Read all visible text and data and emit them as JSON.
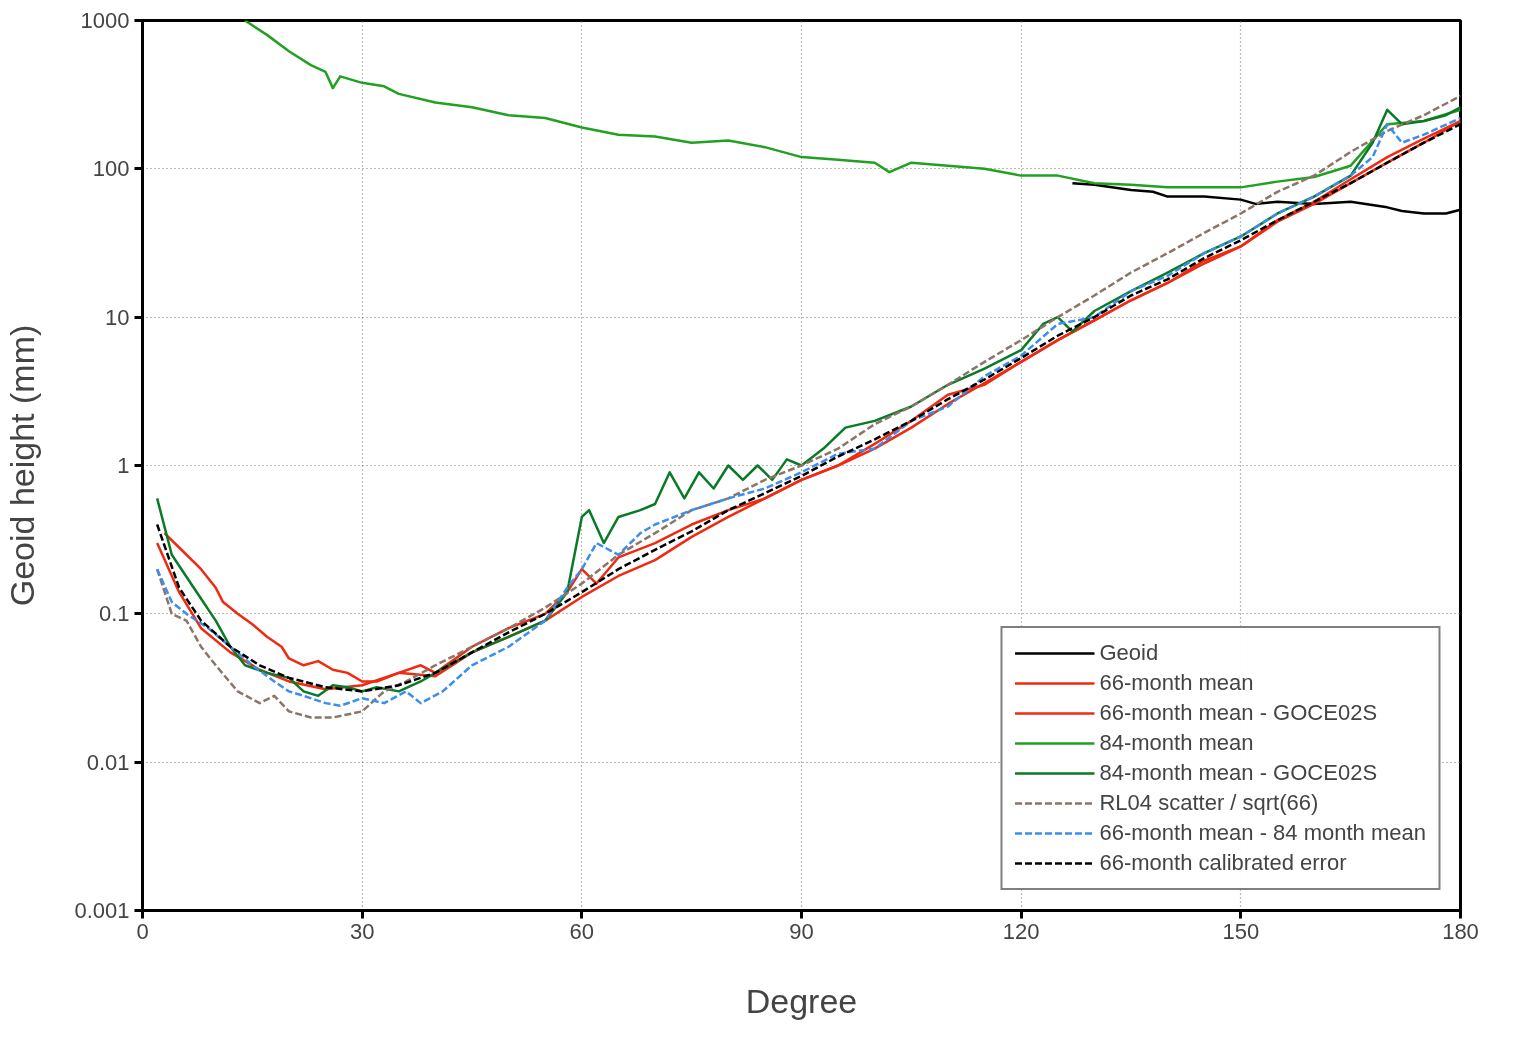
{
  "chart_data": {
    "type": "line",
    "xlabel": "Degree",
    "ylabel": "Geoid height (mm)",
    "xlim": [
      0,
      180
    ],
    "ylim": [
      0.001,
      1000
    ],
    "xticks": [
      0,
      30,
      60,
      90,
      120,
      150,
      180
    ],
    "yticks": [
      0.001,
      0.01,
      0.1,
      1,
      10,
      100,
      1000
    ],
    "log": "y",
    "grid": true,
    "legend": "bottom right",
    "series": [
      {
        "name": "Geoid",
        "color": "#000000",
        "line_style": "solid",
        "x": [
          127,
          130,
          135,
          138,
          140,
          145,
          150,
          152,
          155,
          160,
          165,
          170,
          172,
          175,
          178,
          180
        ],
        "values": [
          80,
          78,
          72,
          70,
          65,
          65,
          62,
          58,
          60,
          58,
          60,
          55,
          52,
          50,
          50,
          53
        ]
      },
      {
        "name": "66-month mean",
        "color": "#f02a10",
        "line_style": "solid",
        "x": [
          3,
          5,
          8,
          10,
          11,
          13,
          15,
          17,
          19,
          20,
          22,
          24,
          26,
          28,
          30,
          32,
          35,
          38,
          40,
          45,
          50,
          55,
          58,
          60,
          62,
          65,
          70,
          75,
          80,
          85,
          90,
          95,
          100,
          105,
          110,
          115,
          120,
          125,
          130,
          135,
          140,
          145,
          150,
          155,
          160,
          165,
          170,
          175,
          180
        ],
        "values": [
          0.35,
          0.28,
          0.2,
          0.15,
          0.12,
          0.1,
          0.085,
          0.07,
          0.06,
          0.05,
          0.045,
          0.048,
          0.042,
          0.04,
          0.035,
          0.035,
          0.04,
          0.045,
          0.04,
          0.06,
          0.08,
          0.1,
          0.14,
          0.2,
          0.16,
          0.24,
          0.3,
          0.4,
          0.5,
          0.6,
          0.8,
          1.0,
          1.4,
          2.0,
          3.0,
          3.5,
          5,
          7,
          9.5,
          13,
          17,
          23,
          30,
          45,
          60,
          85,
          120,
          160,
          210
        ]
      },
      {
        "name": "66-month mean - GOCE02S",
        "color": "#f02a10",
        "line_style": "solid",
        "x": [
          2,
          5,
          8,
          12,
          16,
          20,
          25,
          30,
          35,
          40,
          45,
          50,
          55,
          60,
          65,
          70,
          75,
          80,
          85,
          90,
          95,
          100,
          105,
          110,
          115,
          120,
          125,
          130,
          135,
          140,
          145,
          150,
          155,
          160,
          165,
          170,
          175,
          180
        ],
        "values": [
          0.3,
          0.14,
          0.08,
          0.055,
          0.042,
          0.035,
          0.031,
          0.033,
          0.04,
          0.038,
          0.055,
          0.07,
          0.09,
          0.13,
          0.18,
          0.23,
          0.33,
          0.45,
          0.6,
          0.8,
          1.0,
          1.3,
          1.8,
          2.6,
          3.6,
          5,
          7,
          9.5,
          13,
          17,
          24,
          30,
          44,
          58,
          80,
          110,
          150,
          210
        ]
      },
      {
        "name": "84-month mean",
        "color": "#22a022",
        "line_style": "solid",
        "x": [
          14,
          17,
          20,
          23,
          25,
          26,
          27,
          30,
          33,
          35,
          40,
          45,
          50,
          55,
          60,
          65,
          70,
          75,
          80,
          85,
          90,
          95,
          100,
          102,
          105,
          110,
          115,
          120,
          125,
          130,
          135,
          140,
          145,
          150,
          155,
          160,
          165,
          170,
          175,
          180
        ],
        "values": [
          1000,
          800,
          620,
          500,
          450,
          350,
          420,
          380,
          360,
          320,
          280,
          260,
          230,
          220,
          190,
          170,
          165,
          150,
          155,
          140,
          120,
          115,
          110,
          95,
          110,
          105,
          100,
          90,
          90,
          80,
          78,
          75,
          75,
          75,
          82,
          88,
          105,
          200,
          210,
          250
        ]
      },
      {
        "name": "84-month mean - GOCE02S",
        "color": "#0a7a26",
        "line_style": "solid",
        "x": [
          2,
          4,
          7,
          10,
          12,
          14,
          17,
          20,
          22,
          24,
          26,
          28,
          30,
          32,
          35,
          38,
          40,
          45,
          50,
          55,
          58,
          60,
          61,
          63,
          65,
          68,
          70,
          72,
          74,
          76,
          78,
          80,
          82,
          84,
          86,
          88,
          90,
          93,
          96,
          100,
          105,
          110,
          115,
          120,
          123,
          125,
          127,
          130,
          135,
          140,
          145,
          150,
          155,
          160,
          165,
          168,
          170,
          172,
          175,
          178,
          180
        ],
        "values": [
          0.6,
          0.25,
          0.15,
          0.09,
          0.06,
          0.045,
          0.04,
          0.037,
          0.03,
          0.028,
          0.033,
          0.032,
          0.03,
          0.032,
          0.03,
          0.035,
          0.04,
          0.055,
          0.07,
          0.09,
          0.14,
          0.45,
          0.5,
          0.3,
          0.45,
          0.5,
          0.55,
          0.9,
          0.6,
          0.9,
          0.7,
          1.0,
          0.8,
          1.0,
          0.8,
          1.1,
          1.0,
          1.3,
          1.8,
          2.0,
          2.5,
          3.5,
          4.5,
          6,
          9,
          10,
          8,
          11,
          15,
          20,
          27,
          35,
          50,
          65,
          90,
          150,
          250,
          200,
          210,
          230,
          260
        ]
      },
      {
        "name": "RL04 scatter / sqrt(66)",
        "color": "#8c7468",
        "line_style": "dashed",
        "x": [
          2,
          4,
          6,
          8,
          10,
          13,
          16,
          18,
          20,
          23,
          26,
          30,
          33,
          36,
          40,
          45,
          50,
          55,
          60,
          65,
          70,
          75,
          80,
          85,
          90,
          95,
          100,
          105,
          110,
          115,
          120,
          125,
          130,
          135,
          140,
          145,
          150,
          155,
          160,
          165,
          170,
          175,
          180
        ],
        "values": [
          0.2,
          0.1,
          0.09,
          0.06,
          0.045,
          0.03,
          0.025,
          0.028,
          0.022,
          0.02,
          0.02,
          0.022,
          0.03,
          0.035,
          0.045,
          0.06,
          0.08,
          0.11,
          0.16,
          0.25,
          0.35,
          0.5,
          0.6,
          0.8,
          1.0,
          1.3,
          1.9,
          2.5,
          3.5,
          5,
          7,
          10,
          14,
          20,
          27,
          37,
          50,
          70,
          90,
          130,
          180,
          230,
          310
        ]
      },
      {
        "name": "66-month mean - 84 month mean",
        "color": "#3a8ef0",
        "line_style": "dashed",
        "x": [
          2,
          4,
          6,
          9,
          12,
          15,
          18,
          20,
          22,
          25,
          27,
          30,
          33,
          36,
          38,
          41,
          45,
          50,
          55,
          58,
          60,
          62,
          65,
          68,
          70,
          75,
          80,
          85,
          90,
          95,
          100,
          105,
          110,
          115,
          120,
          125,
          130,
          135,
          140,
          145,
          150,
          155,
          160,
          165,
          168,
          170,
          172,
          175,
          180
        ],
        "values": [
          0.2,
          0.12,
          0.1,
          0.08,
          0.06,
          0.045,
          0.035,
          0.03,
          0.028,
          0.025,
          0.024,
          0.027,
          0.025,
          0.03,
          0.025,
          0.03,
          0.045,
          0.06,
          0.09,
          0.15,
          0.2,
          0.3,
          0.25,
          0.35,
          0.4,
          0.5,
          0.6,
          0.7,
          0.9,
          1.2,
          1.3,
          2.0,
          2.5,
          4,
          5.5,
          9,
          10,
          15,
          19,
          27,
          35,
          50,
          65,
          90,
          120,
          200,
          150,
          170,
          220
        ]
      },
      {
        "name": "66-month calibrated error",
        "color": "#000000",
        "line_style": "dashed",
        "x": [
          2,
          5,
          8,
          12,
          16,
          20,
          25,
          30,
          35,
          40,
          45,
          50,
          55,
          60,
          65,
          70,
          75,
          80,
          85,
          90,
          95,
          100,
          105,
          110,
          115,
          120,
          125,
          130,
          135,
          140,
          145,
          150,
          155,
          160,
          165,
          170,
          175,
          180
        ],
        "values": [
          0.4,
          0.15,
          0.09,
          0.06,
          0.045,
          0.037,
          0.032,
          0.03,
          0.033,
          0.04,
          0.055,
          0.075,
          0.1,
          0.14,
          0.2,
          0.27,
          0.36,
          0.5,
          0.65,
          0.85,
          1.15,
          1.5,
          2.0,
          2.8,
          3.8,
          5.3,
          7.5,
          10,
          14,
          18,
          25,
          33,
          45,
          60,
          80,
          110,
          150,
          200
        ]
      }
    ]
  }
}
